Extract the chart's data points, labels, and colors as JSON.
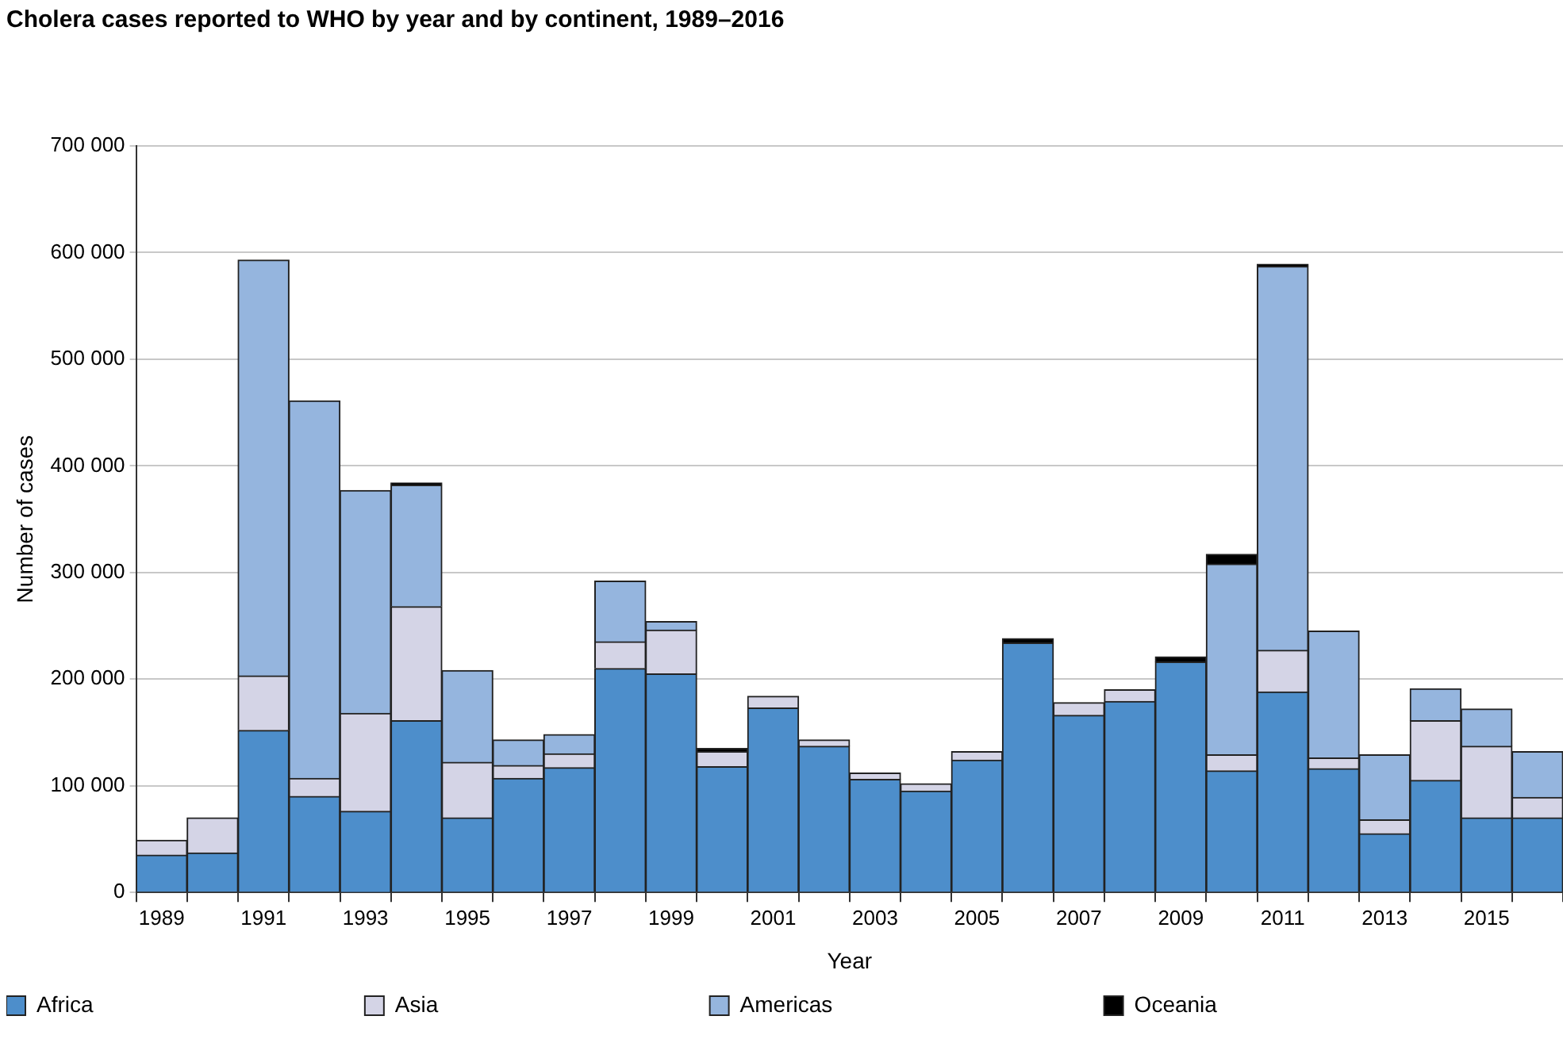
{
  "chart_data": {
    "type": "bar",
    "stacked": true,
    "title": "Cholera cases reported to WHO by year and by continent, 1989–2016",
    "xlabel": "Year",
    "ylabel": "Number of cases",
    "categories": [
      "1989",
      null,
      "1991",
      null,
      "1993",
      null,
      "1995",
      null,
      "1997",
      null,
      "1999",
      null,
      "2001",
      null,
      "2003",
      null,
      "2005",
      null,
      "2007",
      null,
      "2009",
      null,
      "2011",
      null,
      "2013",
      null,
      "2015",
      null
    ],
    "series": [
      {
        "name": "Africa",
        "color": "#4d8ecb",
        "values": [
          35000,
          37000,
          152000,
          90000,
          76000,
          161000,
          70000,
          107000,
          117000,
          210000,
          205000,
          118000,
          173000,
          137000,
          106000,
          95000,
          124000,
          234000,
          166000,
          179000,
          216000,
          114000,
          188000,
          116000,
          55000,
          105000,
          70000,
          70000
        ]
      },
      {
        "name": "Asia",
        "color": "#d4d4e6",
        "values": [
          14000,
          33000,
          51000,
          17000,
          92000,
          107000,
          52000,
          12000,
          13000,
          25000,
          41000,
          14000,
          11000,
          6000,
          6000,
          7000,
          8000,
          null,
          12000,
          11000,
          null,
          15000,
          39000,
          10000,
          13000,
          56000,
          67000,
          19000
        ]
      },
      {
        "name": "Americas",
        "color": "#95b5de",
        "values": [
          null,
          null,
          390000,
          354000,
          209000,
          114000,
          86000,
          24000,
          18000,
          57000,
          8000,
          null,
          null,
          null,
          null,
          null,
          null,
          null,
          null,
          null,
          null,
          179000,
          360000,
          119000,
          61000,
          30000,
          35000,
          43000
        ]
      },
      {
        "name": "Oceania",
        "color": "#000000",
        "values": [
          null,
          null,
          null,
          null,
          null,
          2000,
          null,
          null,
          null,
          null,
          null,
          3000,
          null,
          null,
          null,
          null,
          null,
          4000,
          null,
          null,
          5000,
          9000,
          2000,
          null,
          null,
          null,
          null,
          null
        ]
      }
    ],
    "ylim": [
      0,
      700000
    ],
    "yticks": [
      {
        "value": 0,
        "label": "0"
      },
      {
        "value": 100000,
        "label": "100 000"
      },
      {
        "value": 200000,
        "label": "200 000"
      },
      {
        "value": 300000,
        "label": "300 000"
      },
      {
        "value": 400000,
        "label": "400 000"
      },
      {
        "value": 500000,
        "label": "500 000"
      },
      {
        "value": 600000,
        "label": "600 000"
      },
      {
        "value": 700000,
        "label": "700 000"
      }
    ],
    "grid": "y",
    "legend": "bottom"
  }
}
